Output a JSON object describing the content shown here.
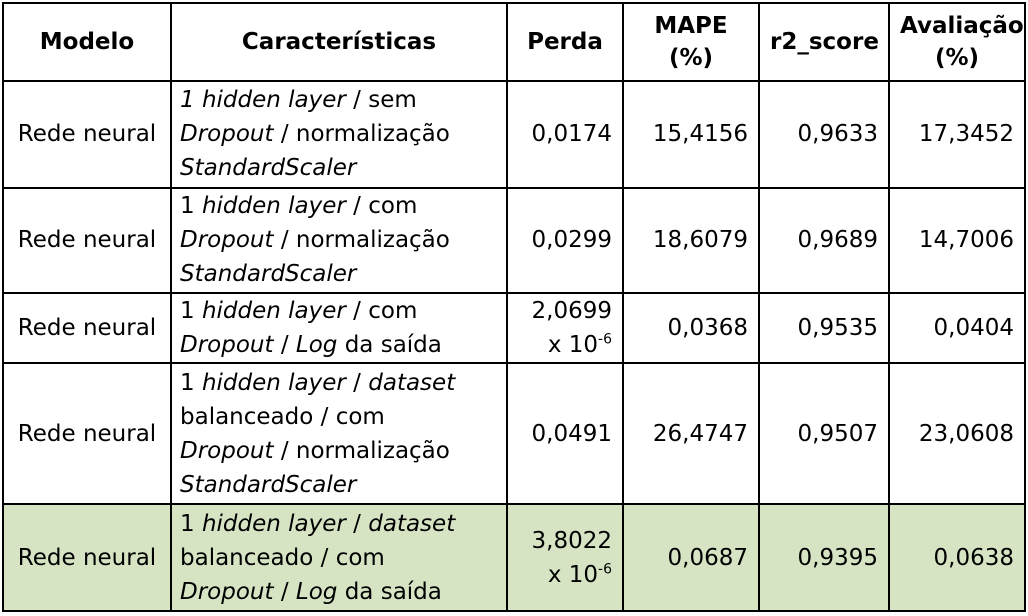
{
  "headers": {
    "model": "Modelo",
    "features": "Características",
    "loss": "Perda",
    "mape_line1": "MAPE",
    "mape_line2": "(%)",
    "r2": "r2_score",
    "eval_line1": "Avaliação",
    "eval_line2": "(%)"
  },
  "rows": [
    {
      "model": "Rede neural",
      "features": [
        [
          "i",
          "1 "
        ],
        [
          "i",
          "hidden layer"
        ],
        [
          "n",
          " / sem"
        ],
        [
          "br",
          ""
        ],
        [
          "i",
          "Dropout"
        ],
        [
          "n",
          " / normalização"
        ],
        [
          "br",
          ""
        ],
        [
          "i",
          "StandardScaler"
        ]
      ],
      "loss": "0,0174",
      "loss_exp": "",
      "mape": "15,4156",
      "r2": "0,9633",
      "eval": "17,3452",
      "highlight": false
    },
    {
      "model": "Rede neural",
      "features": [
        [
          "n",
          "1 "
        ],
        [
          "i",
          "hidden layer"
        ],
        [
          "n",
          " / com"
        ],
        [
          "br",
          ""
        ],
        [
          "i",
          "Dropout"
        ],
        [
          "n",
          " / normalização"
        ],
        [
          "br",
          ""
        ],
        [
          "i",
          "StandardScaler"
        ]
      ],
      "loss": "0,0299",
      "loss_exp": "",
      "mape": "18,6079",
      "r2": "0,9689",
      "eval": "14,7006",
      "highlight": false
    },
    {
      "model": "Rede neural",
      "features": [
        [
          "n",
          "1 "
        ],
        [
          "i",
          "hidden layer"
        ],
        [
          "n",
          " / com"
        ],
        [
          "br",
          ""
        ],
        [
          "i",
          "Dropout"
        ],
        [
          "n",
          " / "
        ],
        [
          "i",
          "Log"
        ],
        [
          "n",
          " da saída"
        ]
      ],
      "loss": "2,0699",
      "loss_mult": "x 10",
      "loss_exp": "-6",
      "mape": "0,0368",
      "r2": "0,9535",
      "eval": "0,0404",
      "highlight": false
    },
    {
      "model": "Rede neural",
      "features": [
        [
          "n",
          "1 "
        ],
        [
          "i",
          "hidden layer"
        ],
        [
          "n",
          " / "
        ],
        [
          "i",
          "dataset"
        ],
        [
          "br",
          ""
        ],
        [
          "n",
          "balanceado / com"
        ],
        [
          "br",
          ""
        ],
        [
          "i",
          "Dropout"
        ],
        [
          "n",
          " / normalização"
        ],
        [
          "br",
          ""
        ],
        [
          "i",
          "StandardScaler"
        ]
      ],
      "loss": "0,0491",
      "loss_exp": "",
      "mape": "26,4747",
      "r2": "0,9507",
      "eval": "23,0608",
      "highlight": false
    },
    {
      "model": "Rede neural",
      "features": [
        [
          "n",
          "1 "
        ],
        [
          "i",
          "hidden layer"
        ],
        [
          "n",
          " / "
        ],
        [
          "i",
          "dataset"
        ],
        [
          "br",
          ""
        ],
        [
          "n",
          "balanceado / com"
        ],
        [
          "br",
          ""
        ],
        [
          "i",
          "Dropout"
        ],
        [
          "n",
          " / "
        ],
        [
          "i",
          "Log"
        ],
        [
          "n",
          " da saída"
        ]
      ],
      "loss": "3,8022",
      "loss_mult": "x 10",
      "loss_exp": "-6",
      "mape": "0,0687",
      "r2": "0,9395",
      "eval": "0,0638",
      "highlight": true
    }
  ]
}
